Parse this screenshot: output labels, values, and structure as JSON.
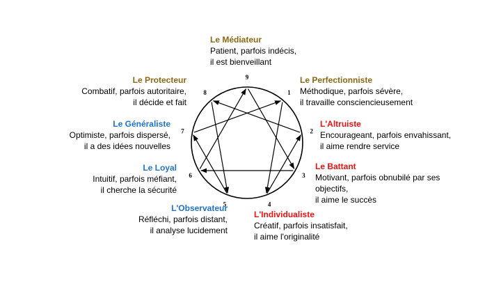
{
  "colors": {
    "gold": "#8B6914",
    "blue": "#1F73C8",
    "red": "#EE1111",
    "line": "#000000"
  },
  "points": [
    {
      "n": "9",
      "angle": 0
    },
    {
      "n": "1",
      "angle": 40
    },
    {
      "n": "2",
      "angle": 80
    },
    {
      "n": "3",
      "angle": 120
    },
    {
      "n": "4",
      "angle": 160
    },
    {
      "n": "5",
      "angle": 200
    },
    {
      "n": "6",
      "angle": 240
    },
    {
      "n": "7",
      "angle": 280
    },
    {
      "n": "8",
      "angle": 320
    }
  ],
  "arrows": [
    {
      "from": "9",
      "to": "3"
    },
    {
      "from": "3",
      "to": "6"
    },
    {
      "from": "6",
      "to": "9"
    },
    {
      "from": "1",
      "to": "4"
    },
    {
      "from": "4",
      "to": "2"
    },
    {
      "from": "2",
      "to": "8"
    },
    {
      "from": "8",
      "to": "5"
    },
    {
      "from": "5",
      "to": "7"
    },
    {
      "from": "7",
      "to": "1"
    }
  ],
  "types": {
    "mediateur": {
      "name": "Le Médiateur",
      "color": "gold",
      "lines": [
        "Patient, parfois indécis,",
        "il est bienveillant"
      ]
    },
    "perfectionniste": {
      "name": "Le Perfectionniste",
      "color": "gold",
      "lines": [
        "Méthodique, parfois sévère,",
        "il travaille consciencieusement"
      ]
    },
    "altruiste": {
      "name": "L'Altruiste",
      "color": "red",
      "lines": [
        "Encourageant, parfois envahissant,",
        "il aime rendre service"
      ]
    },
    "battant": {
      "name": "Le Battant",
      "color": "red",
      "lines": [
        "Motivant, parfois obnubilé par ses",
        "objectifs,",
        "il aime le succès"
      ]
    },
    "individualiste": {
      "name": "L'Individualiste",
      "color": "red",
      "lines": [
        "Créatif, parfois insatisfait,",
        "il aime l'originalité"
      ]
    },
    "observateur": {
      "name": "L'Observateur",
      "color": "blue",
      "lines": [
        "Réfléchi, parfois distant,",
        "il analyse lucidement"
      ]
    },
    "loyal": {
      "name": "Le Loyal",
      "color": "blue",
      "lines": [
        "Intuitif, parfois méfiant,",
        "il cherche la sécurité"
      ]
    },
    "generaliste": {
      "name": "Le Généraliste",
      "color": "blue",
      "lines": [
        "Optimiste, parfois dispersé,",
        "il a des idées nouvelles"
      ]
    },
    "protecteur": {
      "name": "Le Protecteur",
      "color": "gold",
      "lines": [
        "Combatif, parfois autoritaire,",
        "il décide et fait"
      ]
    }
  }
}
